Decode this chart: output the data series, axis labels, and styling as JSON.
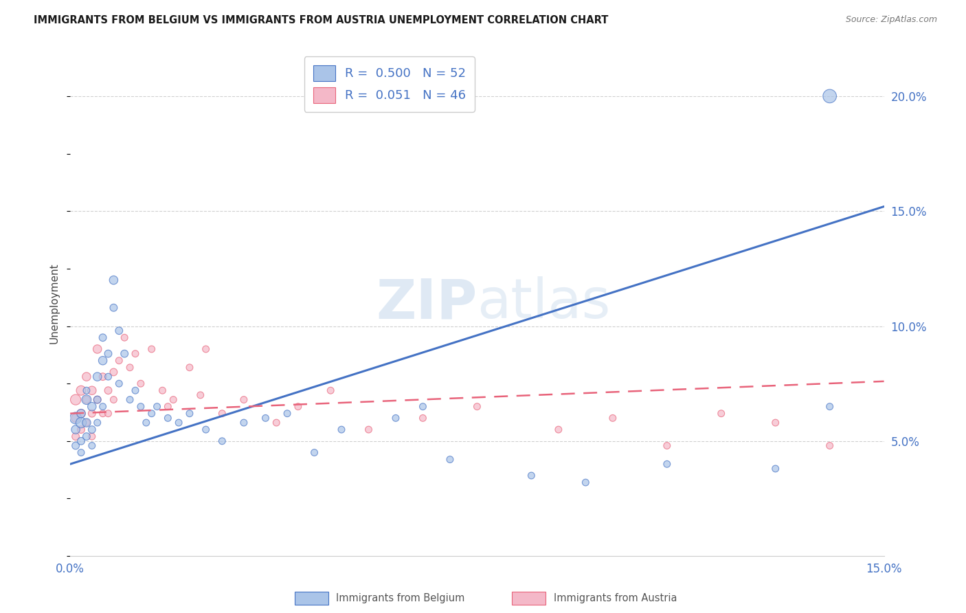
{
  "title": "IMMIGRANTS FROM BELGIUM VS IMMIGRANTS FROM AUSTRIA UNEMPLOYMENT CORRELATION CHART",
  "source": "Source: ZipAtlas.com",
  "ylabel": "Unemployment",
  "xlim": [
    0.0,
    0.15
  ],
  "ylim": [
    0.0,
    0.22
  ],
  "xticks": [
    0.0,
    0.05,
    0.1,
    0.15
  ],
  "xtick_labels": [
    "0.0%",
    "",
    "",
    "15.0%"
  ],
  "ytick_labels_right": [
    "5.0%",
    "10.0%",
    "15.0%",
    "20.0%"
  ],
  "ytick_vals_right": [
    0.05,
    0.1,
    0.15,
    0.2
  ],
  "watermark": "ZIPatlas",
  "legend_R_belgium": "0.500",
  "legend_N_belgium": "52",
  "legend_R_austria": "0.051",
  "legend_N_austria": "46",
  "belgium_color": "#aac4e8",
  "austria_color": "#f4b8c8",
  "belgium_line_color": "#4472c4",
  "austria_line_color": "#e8637a",
  "background_color": "#ffffff",
  "belgium_line_x": [
    0.0,
    0.15
  ],
  "belgium_line_y": [
    0.04,
    0.152
  ],
  "austria_line_x": [
    0.0,
    0.15
  ],
  "austria_line_y": [
    0.062,
    0.076
  ],
  "belgium_x": [
    0.001,
    0.001,
    0.001,
    0.002,
    0.002,
    0.002,
    0.002,
    0.003,
    0.003,
    0.003,
    0.003,
    0.004,
    0.004,
    0.004,
    0.005,
    0.005,
    0.005,
    0.006,
    0.006,
    0.006,
    0.007,
    0.007,
    0.008,
    0.008,
    0.009,
    0.009,
    0.01,
    0.011,
    0.012,
    0.013,
    0.014,
    0.015,
    0.016,
    0.018,
    0.02,
    0.022,
    0.025,
    0.028,
    0.032,
    0.036,
    0.04,
    0.045,
    0.05,
    0.06,
    0.065,
    0.07,
    0.085,
    0.095,
    0.11,
    0.13,
    0.14,
    0.14
  ],
  "belgium_y": [
    0.06,
    0.055,
    0.048,
    0.058,
    0.062,
    0.05,
    0.045,
    0.068,
    0.058,
    0.052,
    0.072,
    0.065,
    0.055,
    0.048,
    0.078,
    0.068,
    0.058,
    0.085,
    0.095,
    0.065,
    0.088,
    0.078,
    0.12,
    0.108,
    0.098,
    0.075,
    0.088,
    0.068,
    0.072,
    0.065,
    0.058,
    0.062,
    0.065,
    0.06,
    0.058,
    0.062,
    0.055,
    0.05,
    0.058,
    0.06,
    0.062,
    0.045,
    0.055,
    0.06,
    0.065,
    0.042,
    0.035,
    0.032,
    0.04,
    0.038,
    0.065,
    0.2
  ],
  "belgium_sizes": [
    150,
    80,
    60,
    120,
    80,
    60,
    50,
    100,
    80,
    60,
    50,
    80,
    60,
    50,
    80,
    60,
    50,
    80,
    60,
    50,
    60,
    50,
    80,
    60,
    60,
    50,
    60,
    50,
    50,
    50,
    50,
    50,
    50,
    50,
    50,
    50,
    50,
    50,
    50,
    50,
    50,
    50,
    50,
    50,
    50,
    50,
    50,
    50,
    50,
    50,
    50,
    200
  ],
  "austria_x": [
    0.001,
    0.001,
    0.001,
    0.002,
    0.002,
    0.002,
    0.003,
    0.003,
    0.003,
    0.004,
    0.004,
    0.004,
    0.005,
    0.005,
    0.006,
    0.006,
    0.007,
    0.007,
    0.008,
    0.008,
    0.009,
    0.01,
    0.011,
    0.012,
    0.013,
    0.015,
    0.017,
    0.019,
    0.022,
    0.025,
    0.028,
    0.032,
    0.038,
    0.042,
    0.048,
    0.055,
    0.065,
    0.075,
    0.09,
    0.1,
    0.11,
    0.12,
    0.13,
    0.14,
    0.018,
    0.024
  ],
  "austria_y": [
    0.068,
    0.06,
    0.052,
    0.072,
    0.062,
    0.055,
    0.078,
    0.068,
    0.058,
    0.072,
    0.062,
    0.052,
    0.09,
    0.068,
    0.078,
    0.062,
    0.072,
    0.062,
    0.08,
    0.068,
    0.085,
    0.095,
    0.082,
    0.088,
    0.075,
    0.09,
    0.072,
    0.068,
    0.082,
    0.09,
    0.062,
    0.068,
    0.058,
    0.065,
    0.072,
    0.055,
    0.06,
    0.065,
    0.055,
    0.06,
    0.048,
    0.062,
    0.058,
    0.048,
    0.065,
    0.07
  ],
  "austria_sizes": [
    120,
    80,
    60,
    100,
    80,
    60,
    80,
    60,
    50,
    80,
    60,
    50,
    80,
    60,
    60,
    50,
    60,
    50,
    60,
    50,
    50,
    50,
    50,
    50,
    50,
    50,
    50,
    50,
    50,
    50,
    50,
    50,
    50,
    50,
    50,
    50,
    50,
    50,
    50,
    50,
    50,
    50,
    50,
    50,
    50,
    50
  ]
}
